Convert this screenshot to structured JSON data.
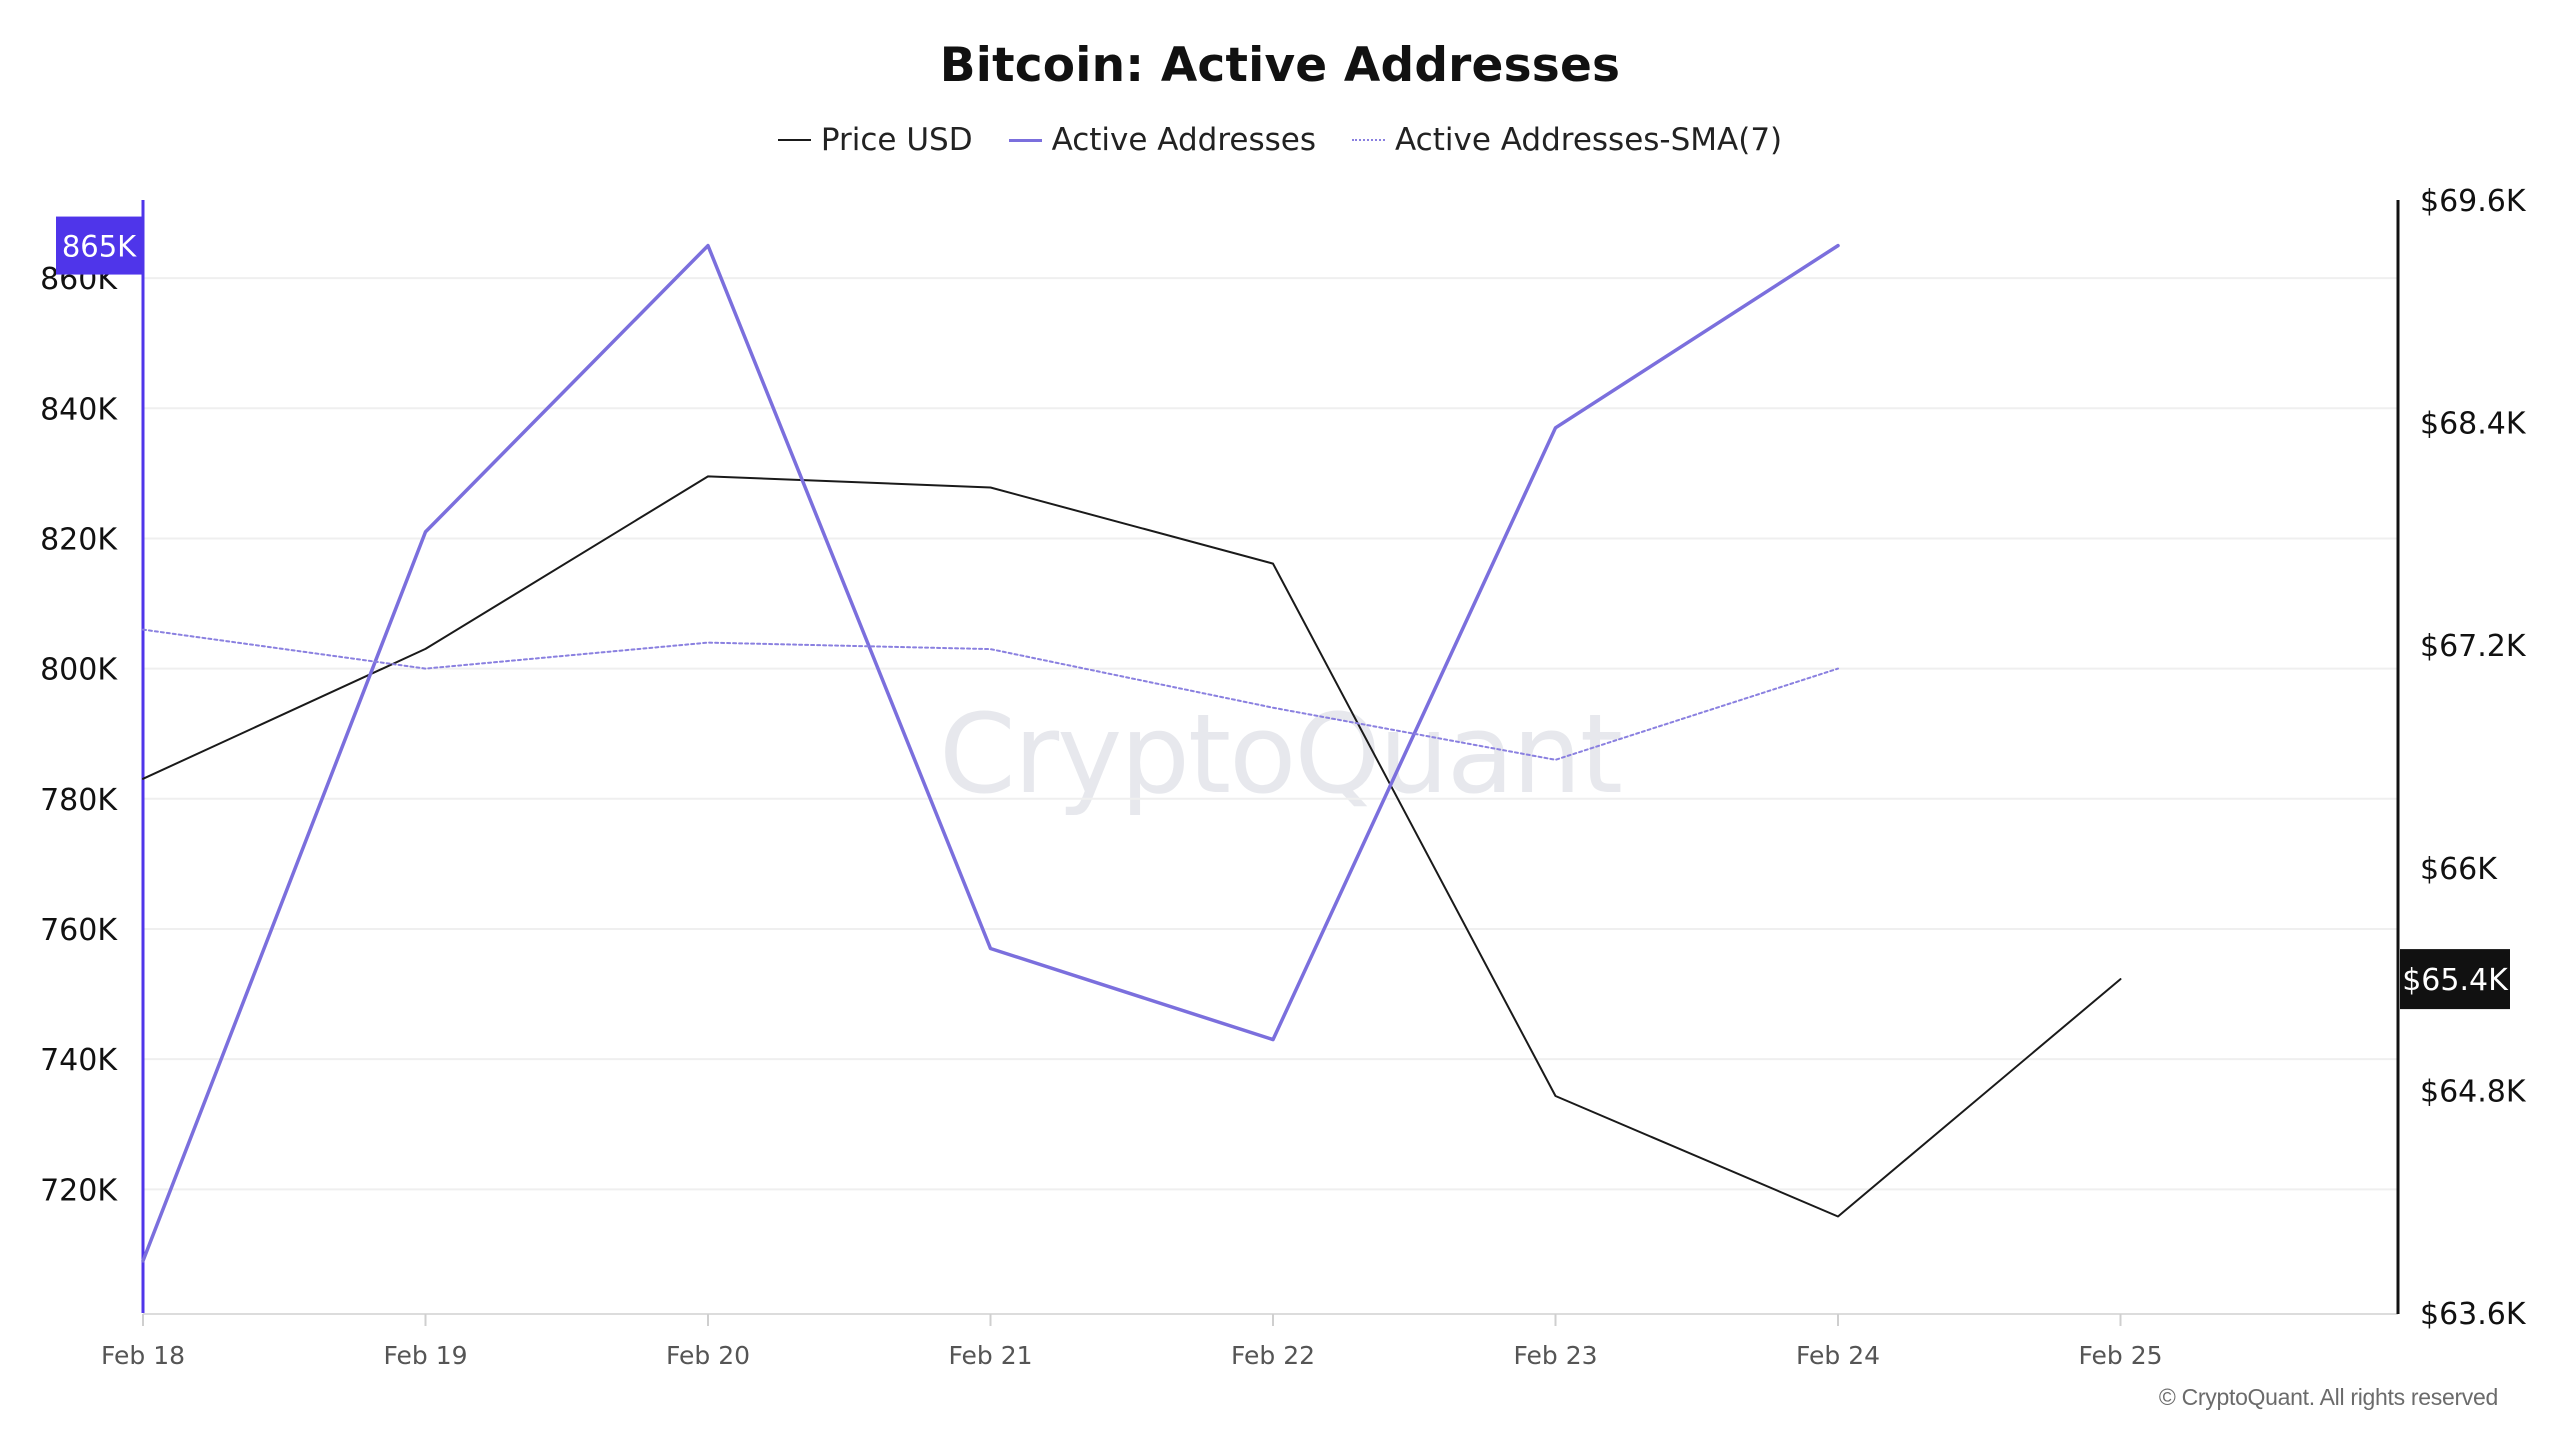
{
  "colors": {
    "price": "#1a1a1a",
    "active": "#7b6fdd",
    "sma": "#8a80e0",
    "left_badge": "#4f35ea",
    "right_badge": "#111111",
    "grid": "#efefef",
    "axis_label": "#111111",
    "date_label": "#555555"
  },
  "chart_data": {
    "type": "line",
    "title": "Bitcoin: Active Addresses",
    "x": [
      "Feb 18",
      "Feb 19",
      "Feb 20",
      "Feb 21",
      "Feb 22",
      "Feb 23",
      "Feb 24",
      "Feb 25"
    ],
    "series": [
      {
        "name": "Price USD",
        "axis": "right",
        "style": "solid",
        "values": [
          66.48,
          67.18,
          68.11,
          68.05,
          67.64,
          64.77,
          64.12,
          65.4
        ]
      },
      {
        "name": "Active Addresses",
        "axis": "left",
        "style": "solid",
        "values": [
          709,
          821,
          865,
          757,
          743,
          837,
          865,
          null
        ]
      },
      {
        "name": "Active Addresses-SMA(7)",
        "axis": "left",
        "style": "dotted",
        "values": [
          806,
          800,
          804,
          803,
          794,
          786,
          800,
          null
        ]
      }
    ],
    "left_axis": {
      "ticks": [
        "720K",
        "740K",
        "760K",
        "780K",
        "800K",
        "820K",
        "840K",
        "860K"
      ],
      "tick_values": [
        720,
        740,
        760,
        780,
        800,
        820,
        840,
        860
      ],
      "ylim": [
        701,
        872
      ],
      "badge": "865K",
      "badge_value": 865
    },
    "right_axis": {
      "ticks": [
        "$63.6K",
        "$64.8K",
        "$66K",
        "$67.2K",
        "$68.4K",
        "$69.6K"
      ],
      "tick_values": [
        63.6,
        64.8,
        66.0,
        67.2,
        68.4,
        69.6
      ],
      "ylim": [
        63.6,
        69.6
      ],
      "badge": "$65.4K",
      "badge_value": 65.4
    },
    "grid": true,
    "legend_position": "top-center"
  },
  "watermark": "CryptoQuant",
  "copyright": "© CryptoQuant. All rights reserved"
}
